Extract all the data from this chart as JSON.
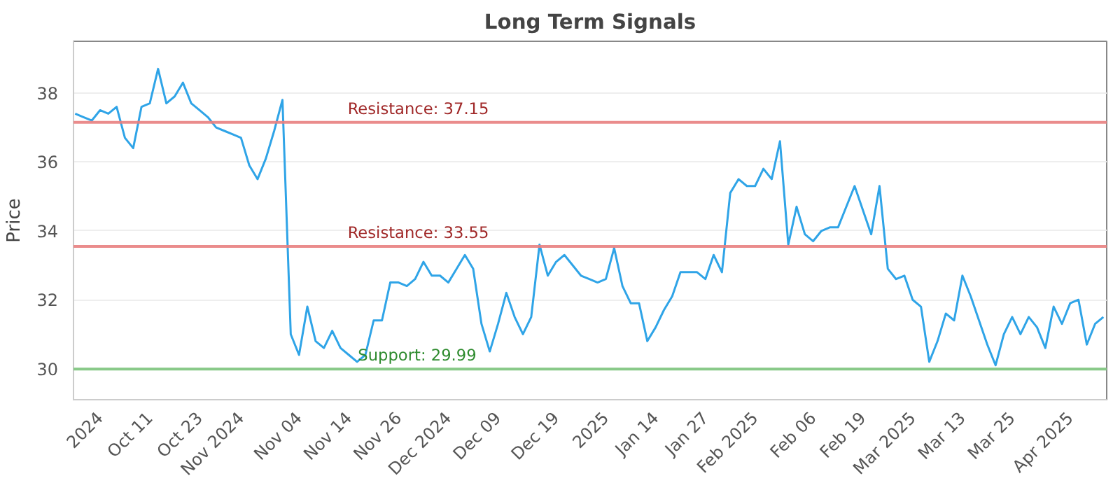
{
  "chart_data": {
    "type": "line",
    "title": "Long Term Signals",
    "ylabel": "Price",
    "categories": [
      null,
      null,
      null,
      "2024",
      null,
      null,
      null,
      null,
      null,
      "Oct 11",
      null,
      null,
      null,
      null,
      null,
      "Oct 23",
      null,
      null,
      null,
      null,
      "Nov 2024",
      null,
      null,
      null,
      null,
      null,
      null,
      "Nov 04",
      null,
      null,
      null,
      null,
      null,
      "Nov 14",
      null,
      null,
      null,
      null,
      null,
      "Nov 26",
      null,
      null,
      null,
      null,
      null,
      "Dec 2024",
      null,
      null,
      null,
      null,
      null,
      "Dec 09",
      null,
      null,
      null,
      null,
      null,
      null,
      "Dec 19",
      null,
      null,
      null,
      null,
      null,
      "2025",
      null,
      null,
      null,
      null,
      null,
      "Jan 14",
      null,
      null,
      null,
      null,
      null,
      "Jan 27",
      null,
      null,
      null,
      null,
      null,
      "Feb 2025",
      null,
      null,
      null,
      null,
      null,
      null,
      "Feb 06",
      null,
      null,
      null,
      null,
      null,
      "Feb 19",
      null,
      null,
      null,
      null,
      null,
      "Mar 2025",
      null,
      null,
      null,
      null,
      null,
      "Mar 13",
      null,
      null,
      null,
      null,
      null,
      "Mar 25",
      null,
      null,
      null,
      null,
      null,
      null,
      "Apr 2025",
      null,
      null,
      null,
      null
    ],
    "series": [
      {
        "color": "#2fa4e7",
        "values": [
          37.4,
          37.3,
          37.2,
          37.5,
          37.4,
          37.6,
          36.7,
          36.4,
          37.6,
          37.7,
          38.7,
          37.7,
          37.9,
          38.3,
          37.7,
          37.5,
          37.3,
          37.0,
          36.9,
          36.8,
          36.7,
          35.9,
          35.5,
          36.1,
          36.9,
          37.8,
          31.0,
          30.4,
          31.8,
          30.8,
          30.6,
          31.1,
          30.6,
          30.4,
          30.2,
          30.4,
          31.4,
          31.4,
          32.5,
          32.5,
          32.4,
          32.6,
          33.1,
          32.7,
          32.7,
          32.5,
          32.9,
          33.3,
          32.9,
          31.3,
          30.5,
          31.3,
          32.2,
          31.5,
          31.0,
          31.5,
          33.6,
          32.7,
          33.1,
          33.3,
          33.0,
          32.7,
          32.6,
          32.5,
          32.6,
          33.5,
          32.4,
          31.9,
          31.9,
          30.8,
          31.2,
          31.7,
          32.1,
          32.8,
          32.8,
          32.8,
          32.6,
          33.3,
          32.8,
          35.1,
          35.5,
          35.3,
          35.3,
          35.8,
          35.5,
          36.6,
          33.6,
          34.7,
          33.9,
          33.7,
          34.0,
          34.1,
          34.1,
          34.7,
          35.3,
          34.6,
          33.9,
          35.3,
          32.9,
          32.6,
          32.7,
          32.0,
          31.8,
          30.2,
          30.8,
          31.6,
          31.4,
          32.7,
          32.1,
          31.4,
          30.7,
          30.1,
          31.0,
          31.5,
          31.0,
          31.5,
          31.2,
          30.6,
          31.8,
          31.3,
          31.9,
          32.0,
          30.7,
          31.3,
          31.5
        ]
      }
    ],
    "ylim": [
      29.1,
      39.5
    ],
    "yticks": [
      30,
      32,
      34,
      36,
      38
    ],
    "ref_lines": [
      {
        "axis": "y",
        "value": 37.15,
        "label": "Resistance: 37.15",
        "color": "#e88080"
      },
      {
        "axis": "y",
        "value": 33.55,
        "label": "Resistance: 33.55",
        "color": "#e88080"
      },
      {
        "axis": "y",
        "value": 29.99,
        "label": "Support: 29.99",
        "color": "#7cc47c"
      }
    ],
    "grid": "y",
    "marker": "none",
    "line_style": "solid"
  }
}
